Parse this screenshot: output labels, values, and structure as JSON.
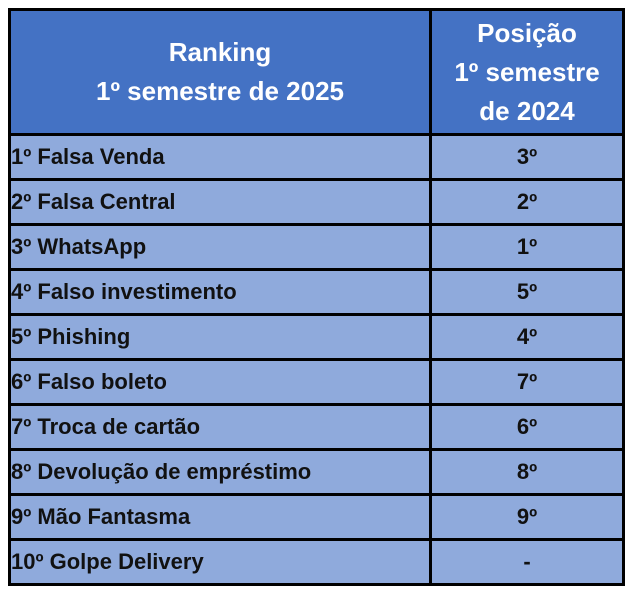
{
  "chart_data": {
    "type": "table",
    "columns": [
      "Ranking 1º semestre de 2025",
      "Posição 1º semestre de 2024"
    ],
    "rows": [
      [
        "1º Falsa Venda",
        "3º"
      ],
      [
        "2º Falsa Central",
        "2º"
      ],
      [
        "3º WhatsApp",
        "1º"
      ],
      [
        "4º Falso investimento",
        "5º"
      ],
      [
        "5º Phishing",
        "4º"
      ],
      [
        "6º Falso boleto",
        "7º"
      ],
      [
        "7º Troca de cartão",
        "6º"
      ],
      [
        "8º Devolução de empréstimo",
        "8º"
      ],
      [
        "9º Mão Fantasma",
        "9º"
      ],
      [
        "10º Golpe Delivery",
        "-"
      ]
    ]
  },
  "header_display": {
    "col1": "Ranking\n1º semestre de 2025",
    "col2": "Posição\n1º semestre\nde 2024"
  },
  "colors": {
    "header_bg": "#4472C4",
    "header_text": "#FFFFFF",
    "row_bg": "#8FAADC",
    "row_text": "#111111",
    "border": "#000000"
  }
}
